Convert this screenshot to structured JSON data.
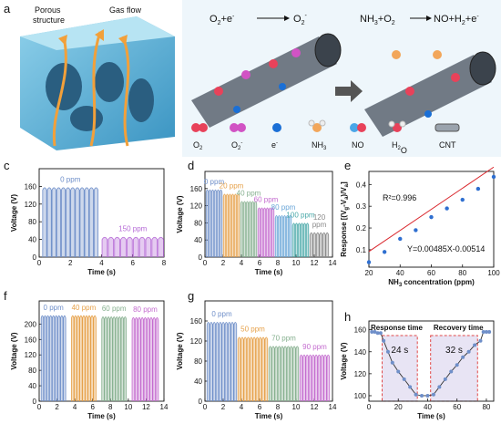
{
  "panels": {
    "a": {
      "label": "a",
      "porous_label": "Porous\nstructure",
      "gas_label": "Gas flow"
    },
    "b": {
      "label": "b",
      "eq1_lhs": "O",
      "eq1_lhs_sub": "2",
      "eq1_mid": "+e",
      "eq1_mid_sup": "-",
      "eq1_rhs": "O",
      "eq1_rhs_sub": "2",
      "eq1_rhs_sup": "-",
      "eq2": "NH",
      "eq2_sub": "3",
      "eq2_b": "+O",
      "eq2_b_sub": "2",
      "eq2_rhs": "NO+H",
      "eq2_rhs_sub": "2",
      "eq2_rhs_b": "+e",
      "legend": [
        {
          "name": "O2",
          "text": "O",
          "sub": "2",
          "sup": "",
          "color": "#e8425a"
        },
        {
          "name": "O2-",
          "text": "O",
          "sub": "2",
          "sup": "-",
          "color": "#d153c4"
        },
        {
          "name": "electron",
          "text": "e",
          "sub": "",
          "sup": "-",
          "color": "#1a6fd6"
        },
        {
          "name": "NH3",
          "text": "NH",
          "sub": "3",
          "sup": "",
          "color": "#f2a65a"
        },
        {
          "name": "NO",
          "text": "NO",
          "sub": "",
          "sup": "",
          "color": "#e8425a"
        },
        {
          "name": "H2O",
          "text": "H",
          "sub": "2",
          "sup": "",
          "text2": "O",
          "color": "#e8425a"
        },
        {
          "name": "CNT",
          "text": "CNT",
          "sub": "",
          "sup": "",
          "color": "#888888"
        }
      ]
    }
  },
  "chart_data": [
    {
      "panel": "c",
      "type": "line",
      "xlabel": "Time (s)",
      "ylabel": "Voltage (V)",
      "xlim": [
        0,
        8
      ],
      "ylim": [
        0,
        200
      ],
      "xticks": [
        0,
        2,
        4,
        6,
        8
      ],
      "yticks": [
        0,
        40,
        80,
        120,
        160
      ],
      "segments": [
        {
          "label": "0 ppm",
          "t_start": 0.2,
          "t_end": 3.8,
          "peak": 160,
          "pulses": 12,
          "color": "#6f8fc9"
        },
        {
          "label": "150 ppm",
          "t_start": 4.0,
          "t_end": 8.0,
          "peak": 48,
          "pulses": 10,
          "color": "#b56ad6"
        }
      ]
    },
    {
      "panel": "d",
      "type": "line",
      "xlabel": "Time (s)",
      "ylabel": "Voltage (V)",
      "xlim": [
        0,
        14
      ],
      "ylim": [
        0,
        200
      ],
      "xticks": [
        0,
        2,
        4,
        6,
        8,
        10,
        12,
        14
      ],
      "yticks": [
        0,
        40,
        80,
        120,
        160
      ],
      "segments": [
        {
          "label": "0 ppm",
          "t_start": 0.1,
          "t_end": 1.9,
          "peak": 160,
          "pulses": 6,
          "color": "#6f8fc9"
        },
        {
          "label": "20 ppm",
          "t_start": 2.0,
          "t_end": 3.8,
          "peak": 150,
          "pulses": 6,
          "color": "#e6a14a"
        },
        {
          "label": "40 ppm",
          "t_start": 3.9,
          "t_end": 5.7,
          "peak": 133,
          "pulses": 6,
          "color": "#86b08f"
        },
        {
          "label": "60 ppm",
          "t_start": 5.8,
          "t_end": 7.6,
          "peak": 118,
          "pulses": 6,
          "color": "#c46ccf"
        },
        {
          "label": "80 ppm",
          "t_start": 7.7,
          "t_end": 9.5,
          "peak": 100,
          "pulses": 6,
          "color": "#6aa6d8"
        },
        {
          "label": "100 ppm",
          "t_start": 9.6,
          "t_end": 11.4,
          "peak": 82,
          "pulses": 6,
          "color": "#4aa9a9"
        },
        {
          "label": "120\nppm",
          "t_start": 11.5,
          "t_end": 13.6,
          "peak": 60,
          "pulses": 6,
          "color": "#8a8a8a"
        }
      ]
    },
    {
      "panel": "e",
      "type": "scatter",
      "xlabel": "NH3 concentration (ppm)",
      "ylabel": "Response [(Vg-Va)/Va]",
      "xlim": [
        20,
        100
      ],
      "ylim": [
        0.02,
        0.46
      ],
      "xticks": [
        20,
        40,
        60,
        80,
        100
      ],
      "yticks": [
        0.1,
        0.2,
        0.3,
        0.4
      ],
      "x": [
        20,
        30,
        40,
        50,
        60,
        70,
        80,
        90,
        100
      ],
      "y": [
        0.043,
        0.09,
        0.15,
        0.19,
        0.25,
        0.29,
        0.33,
        0.38,
        0.435
      ],
      "fit_text": "Y=0.00485X-0.00514",
      "r2_text": "R²=0.996",
      "fit": {
        "slope": 0.00485,
        "intercept": -0.00514
      }
    },
    {
      "panel": "f",
      "type": "line",
      "xlabel": "Time (s)",
      "ylabel": "Voltage (V)",
      "xlim": [
        0,
        14
      ],
      "ylim": [
        0,
        260
      ],
      "xticks": [
        0,
        2,
        4,
        6,
        8,
        10,
        12,
        14
      ],
      "yticks": [
        0,
        40,
        80,
        120,
        160,
        200
      ],
      "segments": [
        {
          "label": "0 ppm",
          "t_start": 0.2,
          "t_end": 3.0,
          "peak": 225,
          "pulses": 9,
          "color": "#6f8fc9"
        },
        {
          "label": "40 ppm",
          "t_start": 3.6,
          "t_end": 6.4,
          "peak": 225,
          "pulses": 9,
          "color": "#e6a14a"
        },
        {
          "label": "60 ppm",
          "t_start": 7.0,
          "t_end": 9.8,
          "peak": 222,
          "pulses": 9,
          "color": "#86b08f"
        },
        {
          "label": "80 ppm",
          "t_start": 10.4,
          "t_end": 13.4,
          "peak": 220,
          "pulses": 9,
          "color": "#c46ccf"
        }
      ]
    },
    {
      "panel": "g",
      "type": "line",
      "xlabel": "Time (s)",
      "ylabel": "Voltage (V)",
      "xlim": [
        0,
        14
      ],
      "ylim": [
        0,
        200
      ],
      "xticks": [
        0,
        2,
        4,
        6,
        8,
        10,
        12,
        14
      ],
      "yticks": [
        0,
        40,
        80,
        120,
        160
      ],
      "segments": [
        {
          "label": "0 ppm",
          "t_start": 0.2,
          "t_end": 3.5,
          "peak": 160,
          "pulses": 10,
          "color": "#6f8fc9"
        },
        {
          "label": "50 ppm",
          "t_start": 3.6,
          "t_end": 6.9,
          "peak": 130,
          "pulses": 10,
          "color": "#e6a14a"
        },
        {
          "label": "70 ppm",
          "t_start": 7.0,
          "t_end": 10.3,
          "peak": 112,
          "pulses": 10,
          "color": "#86b08f"
        },
        {
          "label": "90 ppm",
          "t_start": 10.4,
          "t_end": 13.7,
          "peak": 95,
          "pulses": 10,
          "color": "#c46ccf"
        }
      ]
    },
    {
      "panel": "h",
      "type": "line",
      "xlabel": "Time (s)",
      "ylabel": "Voltage (V)",
      "xlim": [
        0,
        85
      ],
      "ylim": [
        95,
        168
      ],
      "xticks": [
        0,
        20,
        40,
        60,
        80
      ],
      "yticks": [
        100,
        120,
        140,
        160
      ],
      "x": [
        2,
        4,
        6,
        8,
        10,
        13,
        16,
        20,
        24,
        28,
        32,
        36,
        40,
        44,
        48,
        52,
        56,
        60,
        64,
        68,
        72,
        76,
        78,
        80,
        82
      ],
      "y": [
        158,
        158,
        157,
        157,
        150,
        140,
        130,
        122,
        115,
        108,
        101,
        100,
        100,
        101,
        108,
        115,
        122,
        128,
        135,
        140,
        146,
        150,
        158,
        158,
        158
      ],
      "response_label": "Response time",
      "recovery_label": "Recovery time",
      "response_value": "24 s",
      "recovery_value": "32 s",
      "response_range": [
        9,
        33
      ],
      "recovery_range": [
        42,
        74
      ],
      "color": "#6f8fc9"
    }
  ]
}
